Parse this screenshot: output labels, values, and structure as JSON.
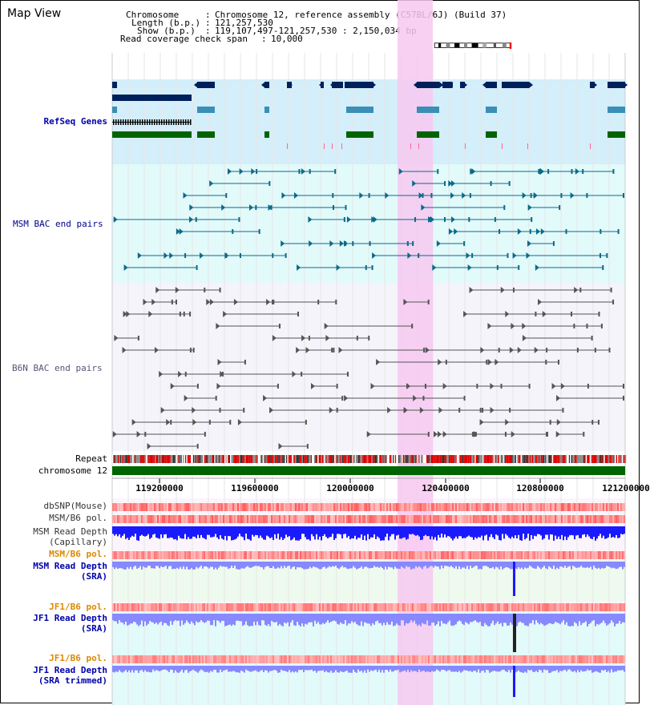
{
  "header": {
    "title": "Map View",
    "chromosome_label": "Chromosome",
    "chromosome_value": "Chromosome 12, reference assembly (C57BL/6J) (Build 37)",
    "length_label": "Length (b.p.)",
    "length_value": "121,257,530",
    "show_label": "Show (b.p.)",
    "show_value": "119,107,497-121,257,530 : 2,150,034 bp",
    "coverage_label": "Read coverage check span",
    "coverage_value": "10,000"
  },
  "tracks": {
    "refseq_genes": "RefSeq Genes",
    "msm_bac": "MSM BAC end pairs",
    "b6n_bac": "B6N BAC end pairs",
    "repeat": "Repeat",
    "chromosome": "chromosome 12",
    "dbsnp": "dbSNP(Mouse)",
    "msm_b6_pol_1": "MSM/B6 pol.",
    "msm_read_depth_cap_1": "MSM Read Depth",
    "msm_read_depth_cap_2": "(Capillary)",
    "msm_b6_pol_2": "MSM/B6 pol.",
    "msm_read_depth_sra_1": "MSM Read Depth",
    "msm_read_depth_sra_2": "(SRA)",
    "jf1_b6_pol_1": "JF1/B6 pol.",
    "jf1_read_depth_sra_1": "JF1 Read Depth",
    "jf1_read_depth_sra_2": "(SRA)",
    "jf1_b6_pol_2": "JF1/B6 pol.",
    "jf1_read_depth_trim_1": "JF1 Read Depth",
    "jf1_read_depth_trim_2": "(SRA trimmed)"
  },
  "axis": {
    "ticks": [
      "119200000",
      "119600000",
      "120000000",
      "120400000",
      "120800000",
      "121200000"
    ]
  },
  "colors": {
    "highlight": "#f7c8f0",
    "refseq_bg": "#d4eefa",
    "msm_bg": "#e2fafa",
    "b6n_bg": "#f4f4fa",
    "gene_navy": "#00205b",
    "gene_teal": "#3a8fb7",
    "gene_green": "#006400",
    "msm_line": "#0a6a8a",
    "b6n_line": "#555555",
    "chromosome_bar": "#006400",
    "pol_red": "#e03030",
    "depth_blue": "#1a1aff",
    "depth_light": "#8888ff"
  }
}
